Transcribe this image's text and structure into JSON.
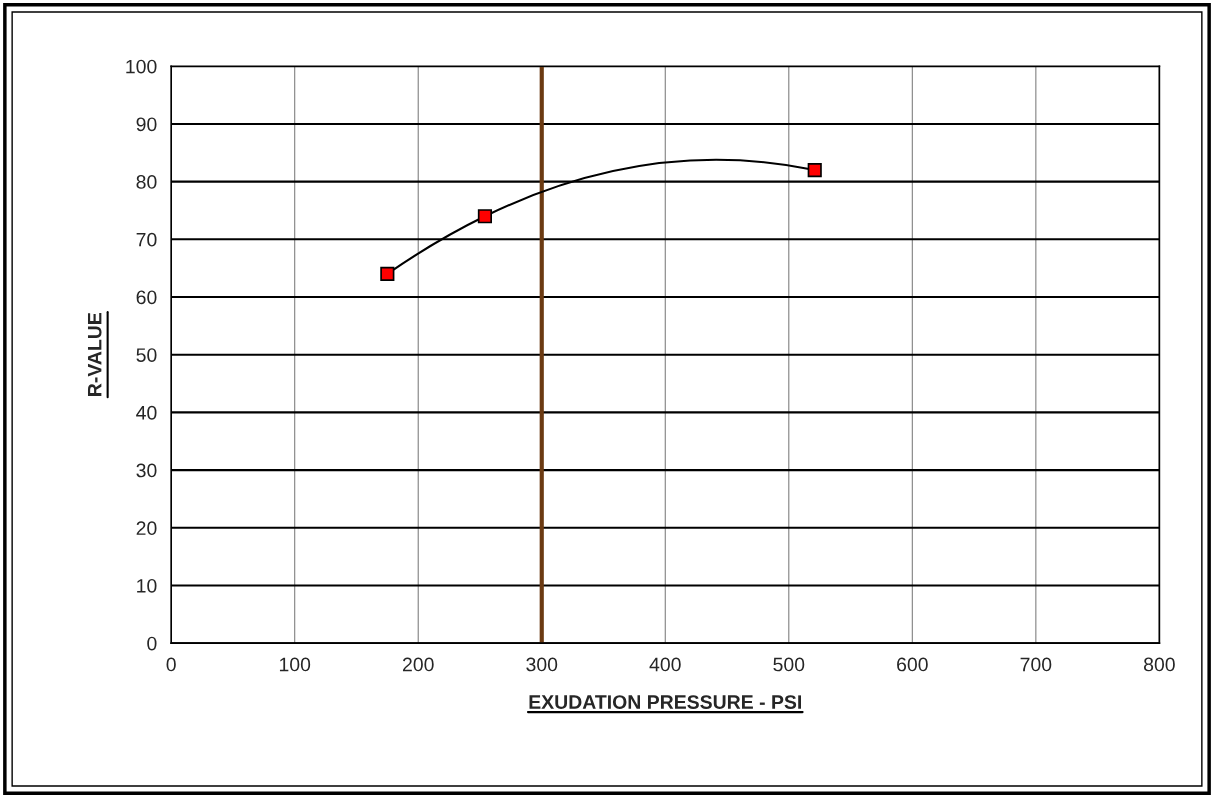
{
  "chart_data": {
    "type": "line",
    "xlabel": "EXUDATION PRESSURE - PSI",
    "ylabel": "R-VALUE",
    "series": [
      {
        "color": "#ff0000",
        "x": [
          175,
          254,
          521
        ],
        "values": [
          64,
          74,
          82
        ]
      }
    ],
    "marker": "square",
    "line_style": "solid",
    "grid": true,
    "xlim": [
      0,
      800
    ],
    "xticks": [
      0,
      100,
      200,
      300,
      400,
      500,
      600,
      700,
      800
    ],
    "ylim": [
      0,
      100
    ],
    "yticks": [
      0,
      10,
      20,
      30,
      40,
      50,
      60,
      70,
      80,
      90,
      100
    ],
    "ref_lines": [
      {
        "axis": "x",
        "value": 300,
        "color": "#6b3a12"
      }
    ]
  }
}
